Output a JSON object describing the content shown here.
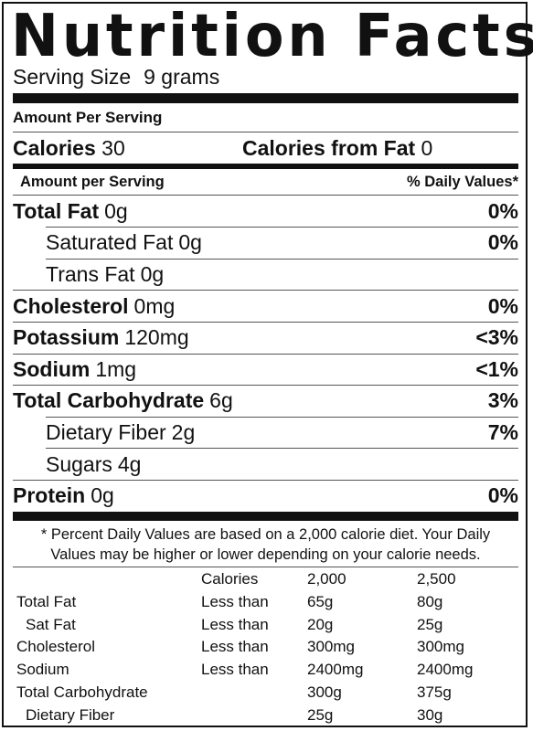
{
  "title": "Nutrition Facts",
  "serving": {
    "label": "Serving Size",
    "value": "9 grams"
  },
  "amount_per_serving_header": "Amount Per Serving",
  "calories": {
    "label": "Calories",
    "value": "30",
    "fat_label": "Calories from Fat",
    "fat_value": "0"
  },
  "subheader": {
    "left": "Amount per Serving",
    "right": "% Daily Values*"
  },
  "nutrients": [
    {
      "name": "Total Fat",
      "amount": "0g",
      "pct": "0%",
      "bold": true
    },
    {
      "name": "Saturated Fat",
      "amount": "0g",
      "pct": "0%",
      "bold": false
    },
    {
      "name": "Trans Fat",
      "amount": "0g",
      "pct": "",
      "bold": false
    },
    {
      "name": "Cholesterol",
      "amount": "0mg",
      "pct": "0%",
      "bold": true
    },
    {
      "name": "Potassium",
      "amount": "120mg",
      "pct": "<3%",
      "bold": true
    },
    {
      "name": "Sodium",
      "amount": "1mg",
      "pct": "<1%",
      "bold": true
    },
    {
      "name": "Total Carbohydrate",
      "amount": "6g",
      "pct": "3%",
      "bold": true
    },
    {
      "name": "Dietary Fiber",
      "amount": "2g",
      "pct": "7%",
      "bold": false
    },
    {
      "name": "Sugars",
      "amount": "4g",
      "pct": "",
      "bold": false
    },
    {
      "name": "Protein",
      "amount": "0g",
      "pct": "0%",
      "bold": true
    }
  ],
  "footnote": [
    "* Percent Daily Values are based on a 2,000 calorie diet. Your Daily",
    "Values may be higher or lower depending on your calorie needs."
  ],
  "dv_table": {
    "header": [
      "",
      "Calories",
      "2,000",
      "2,500"
    ],
    "rows": [
      [
        "Total Fat",
        "Less than",
        "65g",
        "80g"
      ],
      [
        "Sat Fat",
        "Less than",
        "20g",
        "25g"
      ],
      [
        "Cholesterol",
        "Less than",
        "300mg",
        "300mg"
      ],
      [
        "Sodium",
        "Less than",
        "2400mg",
        "2400mg"
      ],
      [
        "Total Carbohydrate",
        "",
        "300g",
        "375g"
      ],
      [
        "Dietary Fiber",
        "",
        "25g",
        "30g"
      ]
    ]
  }
}
